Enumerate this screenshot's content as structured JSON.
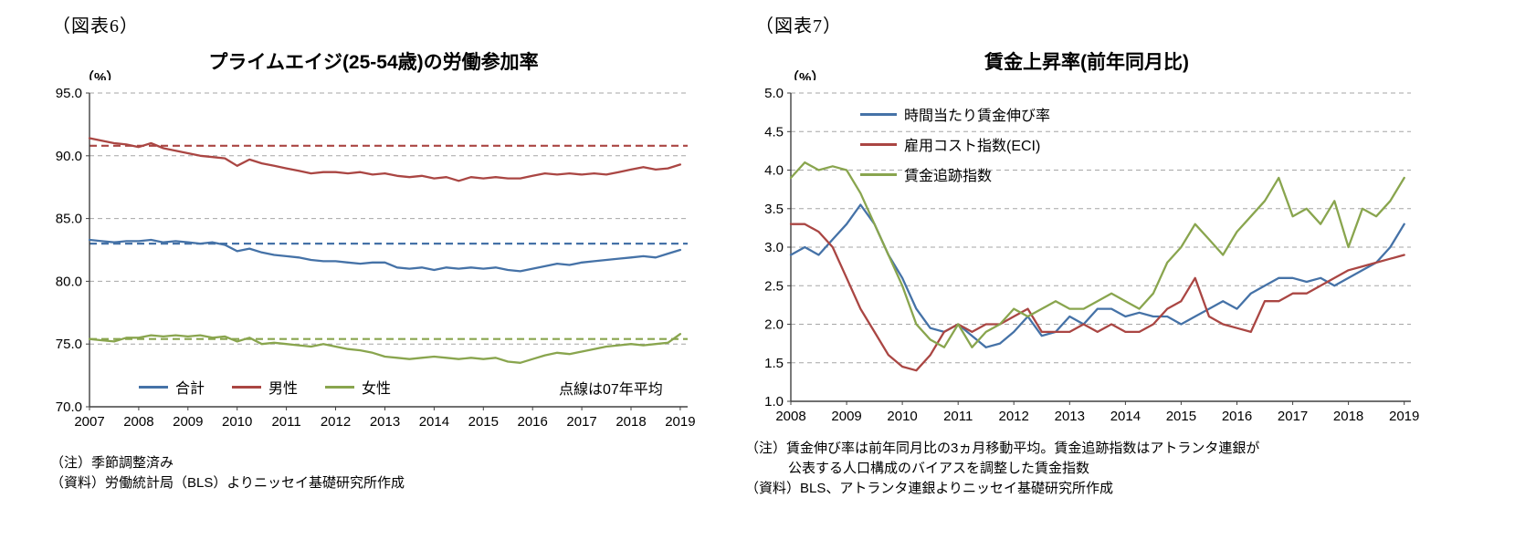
{
  "page": {
    "background": "#ffffff"
  },
  "colors": {
    "blue": "#4572A7",
    "red": "#AA4643",
    "green": "#89A54E",
    "grid": "#a6a6a6",
    "axis": "#404040"
  },
  "left": {
    "figure_label": "（図表6）",
    "notes": [
      "（注）季節調整済み",
      "（資料）労働統計局（BLS）よりニッセイ基礎研究所作成"
    ]
  },
  "right": {
    "figure_label": "（図表7）",
    "notes": [
      "（注）賃金伸び率は前年同月比の3ヵ月移動平均。賃金追跡指数はアトランタ連銀が",
      "公表する人口構成のバイアスを調整した賃金指数",
      "（資料）BLS、アトランタ連銀よりニッセイ基礎研究所作成"
    ]
  },
  "chart_data": [
    {
      "type": "line",
      "title": "プライムエイジ(25-54歳)の労働参加率",
      "xlabel": "",
      "ylabel": "（%）",
      "xlim": [
        2007,
        2019.15
      ],
      "ylim": [
        70.0,
        95.0
      ],
      "ytick_values": [
        70.0,
        75.0,
        80.0,
        85.0,
        90.0,
        95.0
      ],
      "xticks": [
        2007,
        2008,
        2009,
        2010,
        2011,
        2012,
        2013,
        2014,
        2015,
        2016,
        2017,
        2018,
        2019
      ],
      "grid": true,
      "grid_color": "#a6a6a6",
      "axis_color": "#404040",
      "legend_position": "bottom-inside-horizontal",
      "annotation": "点線は07年平均",
      "x_start": 2007,
      "x_step": 0.25,
      "reference_lines": [
        {
          "value": 90.8,
          "color": "#AA4643",
          "note": "男性07年平均"
        },
        {
          "value": 83.0,
          "color": "#4572A7",
          "note": "合計07年平均"
        },
        {
          "value": 75.4,
          "color": "#89A54E",
          "note": "女性07年平均"
        }
      ],
      "series": [
        {
          "name": "合計",
          "color": "#4572A7",
          "values": [
            83.3,
            83.2,
            83.1,
            83.2,
            83.2,
            83.3,
            83.1,
            83.2,
            83.1,
            83.0,
            83.1,
            82.9,
            82.4,
            82.6,
            82.3,
            82.1,
            82.0,
            81.9,
            81.7,
            81.6,
            81.6,
            81.5,
            81.4,
            81.5,
            81.5,
            81.1,
            81.0,
            81.1,
            80.9,
            81.1,
            81.0,
            81.1,
            81.0,
            81.1,
            80.9,
            80.8,
            81.0,
            81.2,
            81.4,
            81.3,
            81.5,
            81.6,
            81.7,
            81.8,
            81.9,
            82.0,
            81.9,
            82.2,
            82.5
          ]
        },
        {
          "name": "男性",
          "color": "#AA4643",
          "values": [
            91.4,
            91.2,
            91.0,
            90.9,
            90.7,
            91.0,
            90.6,
            90.4,
            90.2,
            90.0,
            89.9,
            89.8,
            89.2,
            89.7,
            89.4,
            89.2,
            89.0,
            88.8,
            88.6,
            88.7,
            88.7,
            88.6,
            88.7,
            88.5,
            88.6,
            88.4,
            88.3,
            88.4,
            88.2,
            88.3,
            88.0,
            88.3,
            88.2,
            88.3,
            88.2,
            88.2,
            88.4,
            88.6,
            88.5,
            88.6,
            88.5,
            88.6,
            88.5,
            88.7,
            88.9,
            89.1,
            88.9,
            89.0,
            89.3
          ]
        },
        {
          "name": "女性",
          "color": "#89A54E",
          "values": [
            75.4,
            75.3,
            75.2,
            75.5,
            75.5,
            75.7,
            75.6,
            75.7,
            75.6,
            75.7,
            75.5,
            75.6,
            75.2,
            75.5,
            75.0,
            75.1,
            75.0,
            74.9,
            74.8,
            75.0,
            74.8,
            74.6,
            74.5,
            74.3,
            74.0,
            73.9,
            73.8,
            73.9,
            74.0,
            73.9,
            73.8,
            73.9,
            73.8,
            73.9,
            73.6,
            73.5,
            73.8,
            74.1,
            74.3,
            74.2,
            74.4,
            74.6,
            74.8,
            74.9,
            75.0,
            74.9,
            75.0,
            75.1,
            75.8
          ]
        }
      ]
    },
    {
      "type": "line",
      "title": "賃金上昇率(前年同月比)",
      "xlabel": "",
      "ylabel": "（%）",
      "xlim": [
        2008,
        2019.12
      ],
      "ylim": [
        1.0,
        5.0
      ],
      "ytick_values": [
        1.0,
        1.5,
        2.0,
        2.5,
        3.0,
        3.5,
        4.0,
        4.5,
        5.0
      ],
      "xticks": [
        2008,
        2009,
        2010,
        2011,
        2012,
        2013,
        2014,
        2015,
        2016,
        2017,
        2018,
        2019
      ],
      "grid": true,
      "grid_color": "#a6a6a6",
      "axis_color": "#404040",
      "legend_position": "top-left-inside-vertical",
      "annotation": "",
      "x_start": 2008,
      "x_step": 0.25,
      "reference_lines": [],
      "series": [
        {
          "name": "時間当たり賃金伸び率",
          "color": "#4572A7",
          "values": [
            2.9,
            3.0,
            2.9,
            3.1,
            3.3,
            3.55,
            3.3,
            2.9,
            2.6,
            2.2,
            1.95,
            1.9,
            2.0,
            1.85,
            1.7,
            1.75,
            1.9,
            2.1,
            1.85,
            1.9,
            2.1,
            2.0,
            2.2,
            2.2,
            2.1,
            2.15,
            2.1,
            2.1,
            2.0,
            2.1,
            2.2,
            2.3,
            2.2,
            2.4,
            2.5,
            2.6,
            2.6,
            2.55,
            2.6,
            2.5,
            2.6,
            2.7,
            2.8,
            3.0,
            3.3
          ]
        },
        {
          "name": "雇用コスト指数(ECI)",
          "color": "#AA4643",
          "values": [
            3.3,
            3.3,
            3.2,
            3.0,
            2.6,
            2.2,
            1.9,
            1.6,
            1.45,
            1.4,
            1.6,
            1.9,
            2.0,
            1.9,
            2.0,
            2.0,
            2.1,
            2.2,
            1.9,
            1.9,
            1.9,
            2.0,
            1.9,
            2.0,
            1.9,
            1.9,
            2.0,
            2.2,
            2.3,
            2.6,
            2.1,
            2.0,
            1.95,
            1.9,
            2.3,
            2.3,
            2.4,
            2.4,
            2.5,
            2.6,
            2.7,
            2.75,
            2.8,
            2.85,
            2.9
          ]
        },
        {
          "name": "賃金追跡指数",
          "color": "#89A54E",
          "values": [
            3.9,
            4.1,
            4.0,
            4.05,
            4.0,
            3.7,
            3.3,
            2.9,
            2.5,
            2.0,
            1.8,
            1.7,
            2.0,
            1.7,
            1.9,
            2.0,
            2.2,
            2.1,
            2.2,
            2.3,
            2.2,
            2.2,
            2.3,
            2.4,
            2.3,
            2.2,
            2.4,
            2.8,
            3.0,
            3.3,
            3.1,
            2.9,
            3.2,
            3.4,
            3.6,
            3.9,
            3.4,
            3.5,
            3.3,
            3.6,
            3.0,
            3.5,
            3.4,
            3.6,
            3.9
          ]
        }
      ]
    }
  ]
}
